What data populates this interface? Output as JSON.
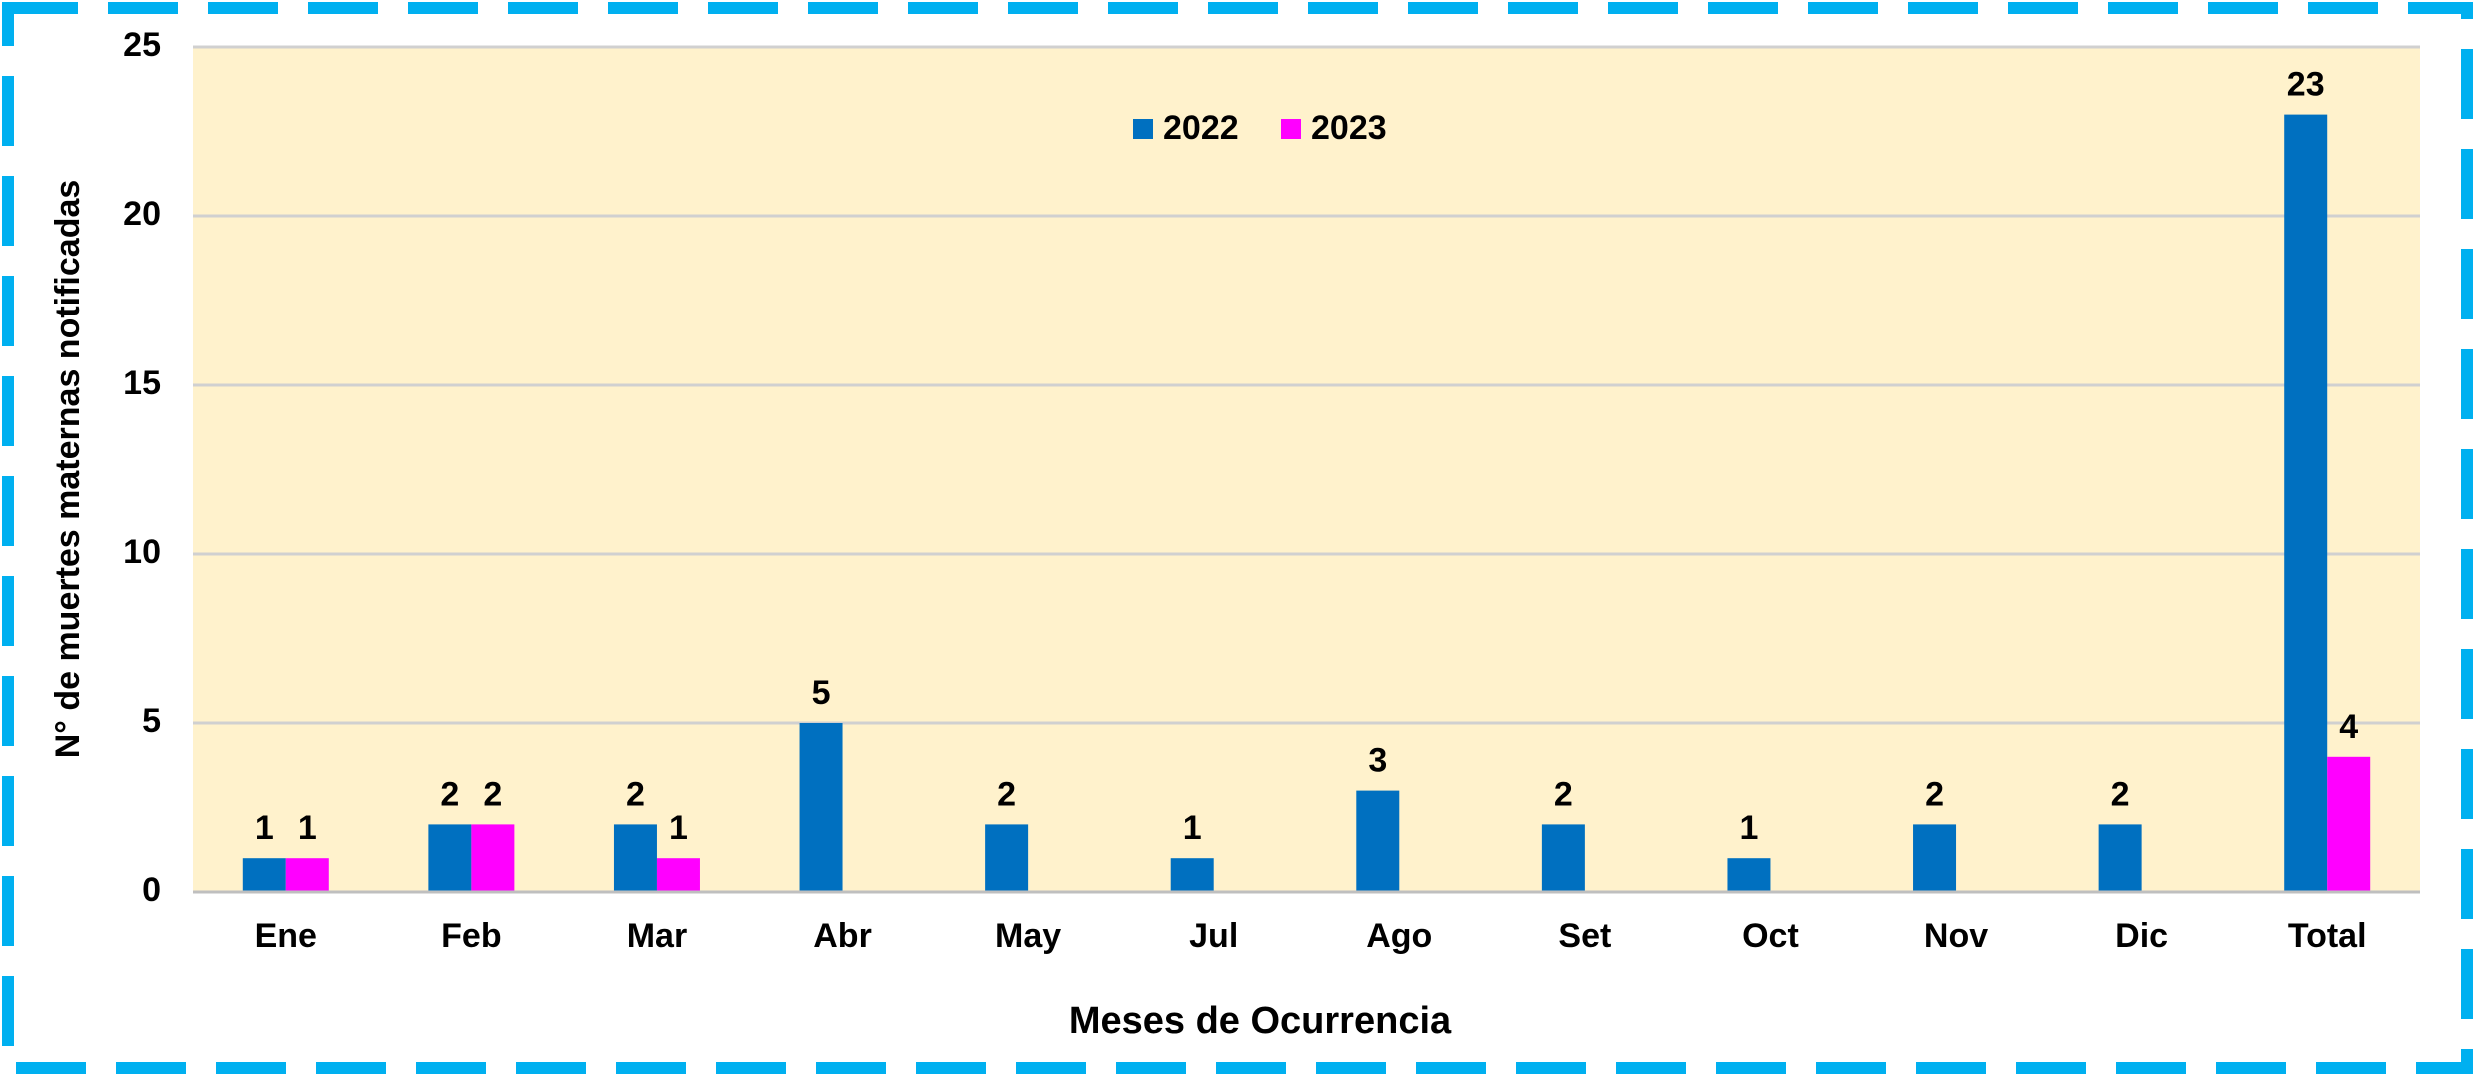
{
  "chart_data": {
    "type": "bar",
    "x_label": "Meses de Ocurrencia",
    "y_label": "N° de muertes maternas notificadas",
    "categories": [
      "Ene",
      "Feb",
      "Mar",
      "Abr",
      "May",
      "Jul",
      "Ago",
      "Set",
      "Oct",
      "Nov",
      "Dic",
      "Total"
    ],
    "series": [
      {
        "name": "2022",
        "color": "#0070c0",
        "values": [
          1,
          2,
          2,
          5,
          2,
          1,
          3,
          2,
          1,
          2,
          2,
          23
        ]
      },
      {
        "name": "2023",
        "color": "#ff00ff",
        "values": [
          1,
          2,
          1,
          null,
          null,
          null,
          null,
          null,
          null,
          null,
          null,
          4
        ]
      }
    ],
    "ylim": [
      0,
      25
    ],
    "yticks": [
      0,
      5,
      10,
      15,
      20,
      25
    ],
    "grid": true,
    "legend": "top"
  }
}
